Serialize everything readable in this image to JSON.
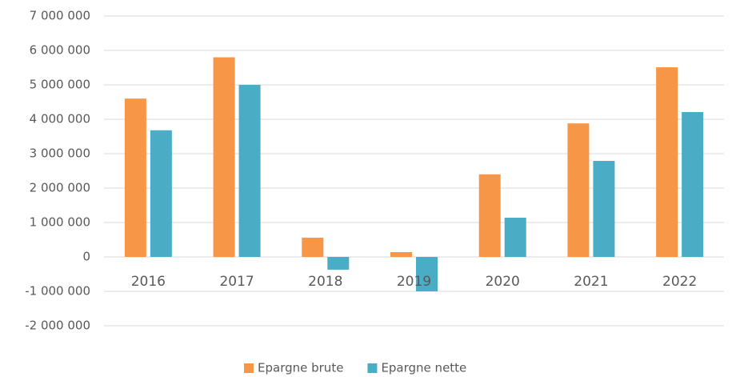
{
  "chart_data": {
    "type": "bar",
    "categories": [
      "2016",
      "2017",
      "2018",
      "2019",
      "2020",
      "2021",
      "2022"
    ],
    "series": [
      {
        "name": "Epargne brute",
        "color": "#f79646",
        "values": [
          4600000,
          5800000,
          560000,
          140000,
          2400000,
          3880000,
          5510000
        ]
      },
      {
        "name": "Epargne nette",
        "color": "#4bacc6",
        "values": [
          3680000,
          5000000,
          -370000,
          -1000000,
          1140000,
          2790000,
          4210000
        ]
      }
    ],
    "ylim": [
      -2000000,
      7000000
    ],
    "yticks": [
      {
        "value": -2000000,
        "label": "-2 000 000"
      },
      {
        "value": -1000000,
        "label": "-1 000 000"
      },
      0,
      {
        "value": 1000000,
        "label": "1 000 000"
      },
      {
        "value": 2000000,
        "label": "2 000 000"
      },
      {
        "value": 3000000,
        "label": "3 000 000"
      },
      {
        "value": 4000000,
        "label": "4 000 000"
      },
      {
        "value": 5000000,
        "label": "5 000 000"
      },
      {
        "value": 6000000,
        "label": "6 000 000"
      },
      {
        "value": 7000000,
        "label": "7 000 000"
      }
    ],
    "grid": true,
    "legend": "bottom"
  }
}
